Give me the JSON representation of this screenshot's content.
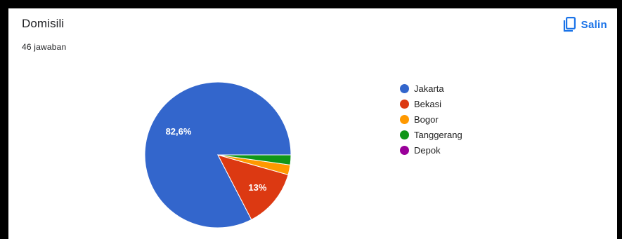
{
  "header": {
    "title": "Domisili",
    "responses": "46 jawaban",
    "copy_label": "Salin",
    "copy_icon": "copy-icon"
  },
  "colors": {
    "accent": "#1a73e8"
  },
  "chart_data": {
    "type": "pie",
    "categories": [
      "Jakarta",
      "Bekasi",
      "Bogor",
      "Tanggerang",
      "Depok"
    ],
    "values": [
      82.6,
      13.0,
      2.2,
      2.2,
      0
    ],
    "data_labels": [
      "82,6%",
      "13%",
      "",
      "",
      ""
    ],
    "colors": [
      "#3366cc",
      "#dc3912",
      "#ff9900",
      "#109618",
      "#990099"
    ],
    "legend_position": "right"
  }
}
